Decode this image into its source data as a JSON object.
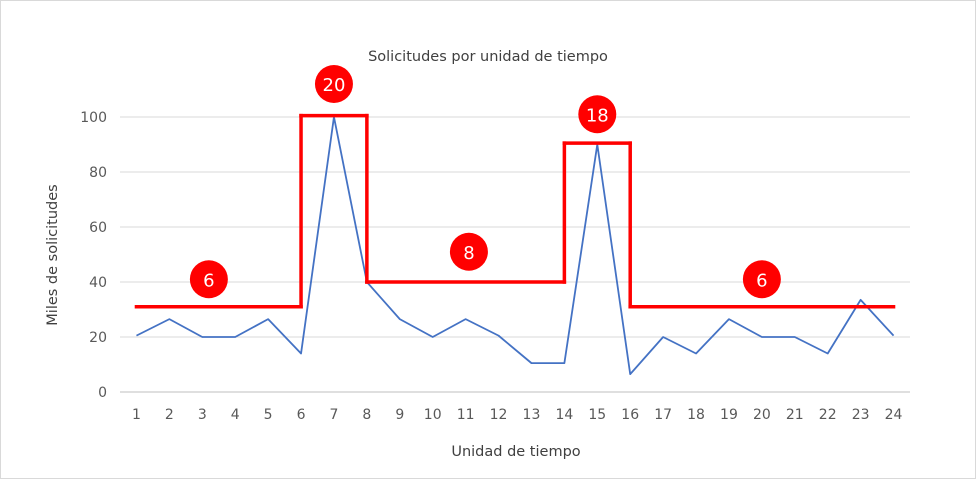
{
  "chart_data": {
    "type": "line",
    "title": "Solicitudes por unidad de tiempo",
    "xlabel": "Unidad de tiempo",
    "ylabel": "Miles de solicitudes",
    "x": [
      1,
      2,
      3,
      4,
      5,
      6,
      7,
      8,
      9,
      10,
      11,
      12,
      13,
      14,
      15,
      16,
      17,
      18,
      19,
      20,
      21,
      22,
      23,
      24
    ],
    "ylim": [
      0,
      100
    ],
    "yticks": [
      0,
      20,
      40,
      60,
      80,
      100
    ],
    "grid": true,
    "series": [
      {
        "values": [
          20.5,
          26.5,
          20,
          20,
          26.5,
          14,
          100,
          40,
          26.5,
          20,
          26.5,
          20.5,
          10.5,
          10.5,
          90,
          6.5,
          20,
          14,
          26.5,
          20,
          20,
          14,
          33.5,
          20.5
        ],
        "color": "#4472c4"
      }
    ],
    "annotation_color": "#ff0000",
    "annotations": {
      "segments": [
        {
          "x_start": 1,
          "x_end": 6,
          "y": 31
        },
        {
          "x_start": 6,
          "x_end": 8,
          "y": 100.5
        },
        {
          "x_start": 8,
          "x_end": 14,
          "y": 40
        },
        {
          "x_start": 14,
          "x_end": 16,
          "y": 90.5
        },
        {
          "x_start": 16,
          "x_end": 24,
          "y": 31
        }
      ],
      "badges": [
        {
          "label": "6",
          "x": 3.2,
          "y": 41
        },
        {
          "label": "20",
          "x": 7,
          "y": 112
        },
        {
          "label": "8",
          "x": 11.1,
          "y": 51
        },
        {
          "label": "18",
          "x": 15,
          "y": 101
        },
        {
          "label": "6",
          "x": 20,
          "y": 41
        }
      ]
    }
  }
}
